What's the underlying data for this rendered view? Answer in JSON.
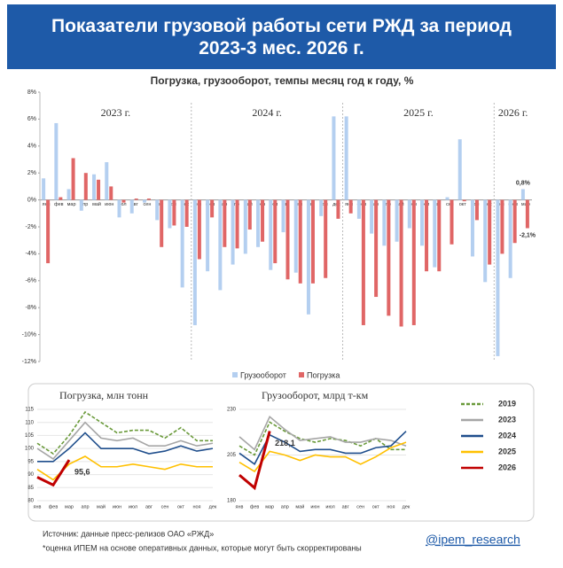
{
  "header": {
    "title": "Показатели грузовой работы сети РЖД за период 2023-3 мес. 2026 г."
  },
  "chart_data": [
    {
      "type": "bar",
      "title": "Погрузка, грузооборот, темпы месяц год к году, %",
      "categories": [
        "янв",
        "фев",
        "мар",
        "апр",
        "май",
        "июн",
        "июл",
        "авг",
        "сен",
        "окт",
        "ноя",
        "дек",
        "янв",
        "фев",
        "мар",
        "апр",
        "май",
        "июн",
        "июл",
        "авг",
        "сен",
        "окт",
        "ноя",
        "дек",
        "янв",
        "фев",
        "мар",
        "апр",
        "май",
        "июн",
        "июл",
        "авг",
        "сен",
        "окт",
        "ноя",
        "дек",
        "янв",
        "фев",
        "мар"
      ],
      "year_labels": [
        "2023 г.",
        "2024 г.",
        "2025 г.",
        "2026 г."
      ],
      "series": [
        {
          "name": "Грузооборот",
          "color": "#b4cff0",
          "values": [
            1.6,
            5.7,
            0.8,
            -0.8,
            1.9,
            2.8,
            -1.3,
            -1.0,
            -0.2,
            -1.5,
            -2.1,
            -6.5,
            -9.3,
            -5.3,
            -6.7,
            -4.8,
            -4.0,
            -3.5,
            -5.2,
            -2.4,
            -5.4,
            -8.5,
            -1.2,
            6.2,
            6.2,
            -1.4,
            -2.5,
            -3.4,
            -3.1,
            -2.1,
            -3.4,
            -5.0,
            0.2,
            4.5,
            -4.2,
            -6.1,
            -11.6,
            -5.8,
            0.8
          ],
          "value_labels": [
            null,
            null,
            null,
            null,
            null,
            null,
            null,
            null,
            null,
            null,
            null,
            null,
            null,
            null,
            null,
            null,
            null,
            null,
            null,
            null,
            null,
            null,
            null,
            null,
            null,
            null,
            null,
            null,
            null,
            null,
            null,
            null,
            null,
            null,
            null,
            null,
            null,
            null,
            "0,8%"
          ]
        },
        {
          "name": "Погрузка",
          "color": "#e06666",
          "values": [
            -4.7,
            0.2,
            3.1,
            2.0,
            1.5,
            1.0,
            -0.2,
            0.1,
            0.1,
            -3.5,
            -1.9,
            -2.0,
            -4.4,
            -1.3,
            -3.5,
            -3.6,
            -2.2,
            -3.1,
            -4.7,
            -5.9,
            -6.2,
            -6.2,
            -5.8,
            -1.4,
            -1.0,
            -9.3,
            -7.2,
            -8.6,
            -9.4,
            -9.3,
            -5.3,
            -5.3,
            -3.3,
            -0.1,
            -1.5,
            -4.8,
            -4.0,
            -3.2,
            -2.1
          ],
          "value_labels": [
            null,
            null,
            null,
            null,
            null,
            null,
            null,
            null,
            null,
            null,
            null,
            null,
            null,
            null,
            null,
            null,
            null,
            null,
            null,
            null,
            null,
            null,
            null,
            null,
            null,
            null,
            null,
            null,
            null,
            null,
            null,
            null,
            null,
            null,
            null,
            null,
            null,
            null,
            "-2,1%"
          ]
        }
      ],
      "ylim": [
        -12,
        8
      ],
      "yticks": [
        {
          "value": -12,
          "label": "-12%"
        },
        {
          "value": -10,
          "label": "-10%"
        },
        {
          "value": -8,
          "label": "-8%"
        },
        {
          "value": -6,
          "label": "-6%"
        },
        {
          "value": -4,
          "label": "-4%"
        },
        {
          "value": -2,
          "label": "-2%"
        },
        {
          "value": 0,
          "label": "0%"
        },
        {
          "value": 2,
          "label": "2%"
        },
        {
          "value": 4,
          "label": "4%"
        },
        {
          "value": 6,
          "label": "6%"
        },
        {
          "value": 8,
          "label": "8%"
        }
      ],
      "legend": "bottom"
    },
    {
      "type": "line",
      "title": "Погрузка, млн тонн",
      "categories": [
        "янв",
        "фев",
        "мар",
        "апр",
        "май",
        "июн",
        "июл",
        "авг",
        "сен",
        "окт",
        "ноя",
        "дек"
      ],
      "ylim": [
        80,
        115
      ],
      "yticks": [
        80,
        85,
        90,
        95,
        100,
        105,
        110,
        115
      ],
      "grid": true,
      "series": [
        {
          "name": "2019",
          "color": "#6a9a3a",
          "dash": true,
          "values": [
            102,
            98,
            105,
            114,
            110,
            106,
            107,
            107,
            104,
            108,
            103,
            103
          ]
        },
        {
          "name": "2023",
          "color": "#a6a6a6",
          "values": [
            100,
            96,
            103,
            110,
            104,
            103,
            104,
            101,
            101,
            103,
            101,
            102
          ]
        },
        {
          "name": "2024",
          "color": "#1f4e8c",
          "values": [
            95,
            95,
            100,
            106,
            100,
            100,
            100,
            98,
            99,
            101,
            99,
            100
          ]
        },
        {
          "name": "2025",
          "color": "#ffc000",
          "values": [
            92,
            88,
            94,
            97,
            93,
            93,
            94,
            93,
            92,
            94,
            93,
            93
          ]
        },
        {
          "name": "2026",
          "color": "#c00000",
          "values": [
            89,
            86,
            95.6,
            null,
            null,
            null,
            null,
            null,
            null,
            null,
            null,
            null
          ],
          "value_labels": [
            null,
            null,
            "95,6",
            null,
            null,
            null,
            null,
            null,
            null,
            null,
            null,
            null
          ]
        }
      ]
    },
    {
      "type": "line",
      "title": "Грузооборот, млрд т-км",
      "categories": [
        "янв",
        "фев",
        "мар",
        "апр",
        "май",
        "июн",
        "июл",
        "авг",
        "сен",
        "окт",
        "ноя",
        "дек"
      ],
      "ylim": [
        180,
        230
      ],
      "yticks": [
        180,
        205,
        230
      ],
      "grid": true,
      "series": [
        {
          "color": "#6a9a3a",
          "dash": true,
          "values": [
            210,
            205,
            223,
            218,
            214,
            212,
            214,
            213,
            210,
            214,
            208,
            208
          ]
        },
        {
          "color": "#a6a6a6",
          "values": [
            215,
            208,
            226,
            219,
            213,
            214,
            215,
            212,
            212,
            214,
            213,
            210
          ]
        },
        {
          "color": "#1f4e8c",
          "values": [
            206,
            200,
            216,
            212,
            207,
            208,
            208,
            206,
            206,
            209,
            210,
            218
          ]
        },
        {
          "color": "#ffc000",
          "values": [
            201,
            196,
            207,
            205,
            202,
            205,
            204,
            204,
            200,
            204,
            209,
            212
          ]
        },
        {
          "color": "#c00000",
          "values": [
            194,
            187,
            218.1,
            null,
            null,
            null,
            null,
            null,
            null,
            null,
            null,
            null
          ],
          "value_labels": [
            null,
            null,
            "218,1",
            null,
            null,
            null,
            null,
            null,
            null,
            null,
            null,
            null
          ]
        }
      ]
    }
  ],
  "footer": {
    "source": "Источник: данные пресс-релизов ОАО «РЖД»",
    "note": "*оценка ИПЕМ на основе оперативных данных, которые могут быть скорректированы",
    "handle": "@ipem_research"
  }
}
